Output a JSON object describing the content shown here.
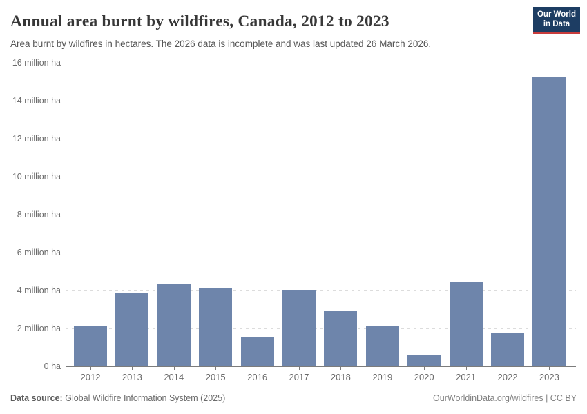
{
  "header": {
    "title": "Annual area burnt by wildfires, Canada, 2012 to 2023",
    "subtitle": "Area burnt by wildfires in hectares. The 2026 data is incomplete and was last updated 26 March 2026.",
    "logo": {
      "line1": "Our World",
      "line2": "in Data"
    }
  },
  "chart_data": {
    "type": "bar",
    "title": "Annual area burnt by wildfires, Canada, 2012 to 2023",
    "unit": "million hectares",
    "categories": [
      "2012",
      "2013",
      "2014",
      "2015",
      "2016",
      "2017",
      "2018",
      "2019",
      "2020",
      "2021",
      "2022",
      "2023"
    ],
    "values": [
      2.15,
      3.9,
      4.35,
      4.1,
      1.55,
      4.05,
      2.9,
      2.1,
      0.62,
      4.45,
      1.75,
      15.25
    ],
    "xlabel": "",
    "ylabel": "",
    "ylim": [
      0,
      16
    ],
    "yticks": [
      {
        "value": 0,
        "label": "0 ha"
      },
      {
        "value": 2,
        "label": "2 million ha"
      },
      {
        "value": 4,
        "label": "4 million ha"
      },
      {
        "value": 6,
        "label": "6 million ha"
      },
      {
        "value": 8,
        "label": "8 million ha"
      },
      {
        "value": 10,
        "label": "10 million ha"
      },
      {
        "value": 12,
        "label": "12 million ha"
      },
      {
        "value": 14,
        "label": "14 million ha"
      },
      {
        "value": 16,
        "label": "16 million ha"
      }
    ],
    "grid": "horizontal-dashed",
    "legend": "none",
    "bar_color": "#6e85ab"
  },
  "footer": {
    "source_label": "Data source:",
    "source_value": "Global Wildfire Information System (2025)",
    "link": "OurWorldinData.org/wildfires | CC BY"
  },
  "colors": {
    "bar": "#6e85ab",
    "title_text": "#383838",
    "subtitle_text": "#565656",
    "axis_text": "#6b6b6b",
    "gridline": "#dcdcdc",
    "axis_line": "#7c7c7c",
    "logo_background": "#1d3d63",
    "logo_accent": "#c93c3c",
    "background": "#ffffff"
  }
}
